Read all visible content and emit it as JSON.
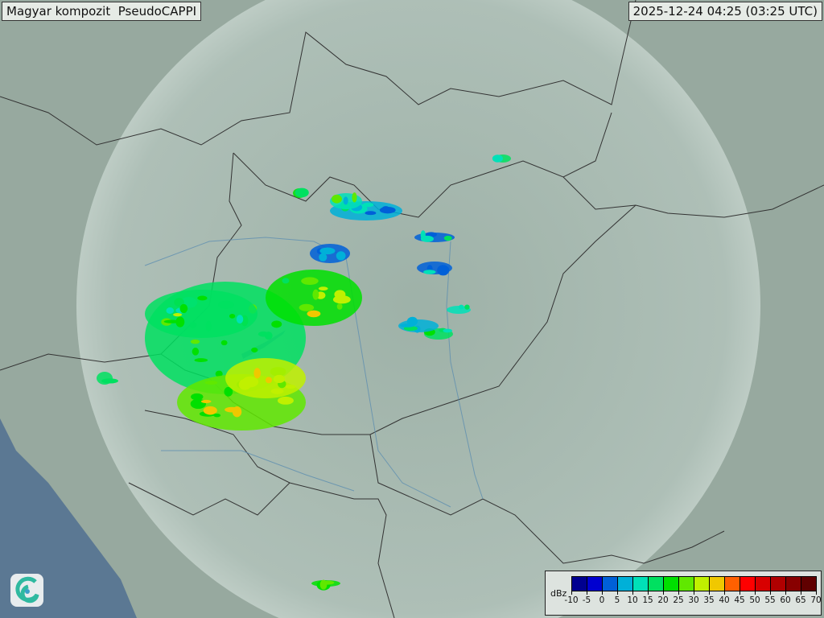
{
  "header": {
    "title": "Magyar kompozit  PseudoCAPPI",
    "timestamp": "2025-12-24 04:25 (03:25 UTC)"
  },
  "legend": {
    "unit": "dBz",
    "ticks": [
      "-10",
      "-5",
      "0",
      "5",
      "10",
      "15",
      "20",
      "25",
      "30",
      "35",
      "40",
      "45",
      "50",
      "55",
      "60",
      "65",
      "70"
    ],
    "colors": [
      "#000090",
      "#0000d0",
      "#0060d8",
      "#00b0d8",
      "#00e0b8",
      "#00e060",
      "#00e000",
      "#60e800",
      "#c0f000",
      "#f0c800",
      "#ff6000",
      "#ff0000",
      "#d80000",
      "#b00000",
      "#880000",
      "#600000"
    ]
  },
  "logo": {
    "icon": "swirl-logo-icon"
  },
  "colors": {
    "land": "#9aaba2",
    "coverage": "#b5c6be",
    "sea": "#5b7893",
    "border": "#333333"
  }
}
